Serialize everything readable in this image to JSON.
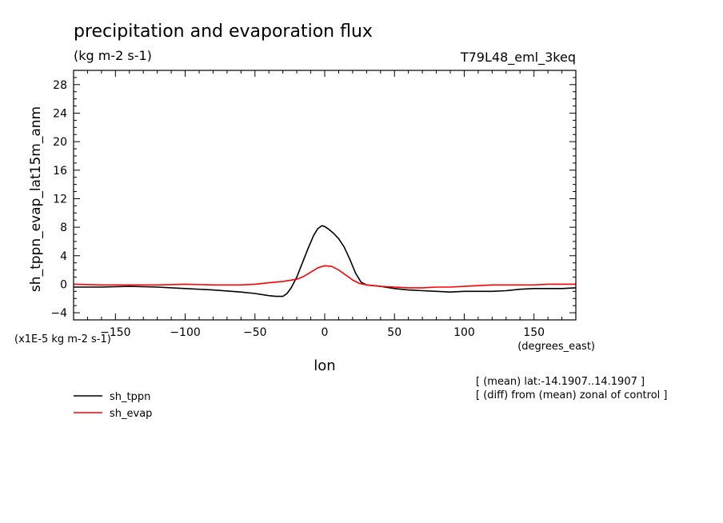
{
  "chart_data": {
    "type": "line",
    "title": "precipitation and evaporation flux",
    "subtitle": "(kg m-2 s-1)",
    "run_label": "T79L48_eml_3keq",
    "ylabel": "sh_tppn_evap_lat15m_anm",
    "xlabel": "lon",
    "x_units": "(degrees_east)",
    "y_scale_note": "(x1E-5 kg m-2 s-1)",
    "notes": [
      "[ (mean) lat:-14.1907..14.1907 ]",
      "[ (diff) from (mean) zonal of control ]"
    ],
    "xlim": [
      -180,
      180
    ],
    "ylim": [
      -5,
      30
    ],
    "x_ticks": [
      -150,
      -100,
      -50,
      0,
      50,
      100,
      150
    ],
    "y_ticks": [
      -4,
      0,
      4,
      8,
      12,
      16,
      20,
      24,
      28
    ],
    "series": [
      {
        "name": "sh_tppn",
        "color": "#000000",
        "x": [
          -180,
          -160,
          -140,
          -120,
          -100,
          -80,
          -60,
          -50,
          -40,
          -35,
          -30,
          -27,
          -24,
          -20,
          -16,
          -12,
          -8,
          -5,
          -2,
          0,
          3,
          6,
          10,
          14,
          18,
          22,
          26,
          30,
          40,
          50,
          60,
          70,
          80,
          90,
          100,
          110,
          120,
          130,
          140,
          150,
          160,
          170,
          180
        ],
        "y": [
          -0.4,
          -0.4,
          -0.3,
          -0.4,
          -0.6,
          -0.8,
          -1.1,
          -1.3,
          -1.6,
          -1.7,
          -1.7,
          -1.3,
          -0.5,
          1.0,
          3.0,
          5.0,
          6.8,
          7.8,
          8.2,
          8.1,
          7.7,
          7.2,
          6.4,
          5.2,
          3.5,
          1.6,
          0.3,
          -0.1,
          -0.3,
          -0.6,
          -0.8,
          -0.9,
          -1.0,
          -1.1,
          -1.0,
          -1.0,
          -1.0,
          -0.9,
          -0.7,
          -0.6,
          -0.6,
          -0.6,
          -0.5
        ]
      },
      {
        "name": "sh_evap",
        "color": "#ff0000",
        "x": [
          -180,
          -160,
          -140,
          -120,
          -100,
          -80,
          -60,
          -50,
          -40,
          -30,
          -20,
          -15,
          -10,
          -5,
          0,
          5,
          10,
          15,
          20,
          25,
          30,
          40,
          50,
          60,
          70,
          80,
          90,
          100,
          110,
          120,
          130,
          140,
          150,
          160,
          170,
          180
        ],
        "y": [
          0.0,
          -0.1,
          -0.1,
          -0.1,
          0.0,
          -0.1,
          -0.1,
          0.0,
          0.2,
          0.4,
          0.7,
          1.1,
          1.7,
          2.3,
          2.6,
          2.5,
          2.0,
          1.3,
          0.6,
          0.1,
          -0.1,
          -0.3,
          -0.4,
          -0.5,
          -0.5,
          -0.4,
          -0.4,
          -0.3,
          -0.2,
          -0.1,
          -0.1,
          -0.1,
          -0.1,
          0.0,
          0.0,
          0.0
        ]
      }
    ]
  }
}
